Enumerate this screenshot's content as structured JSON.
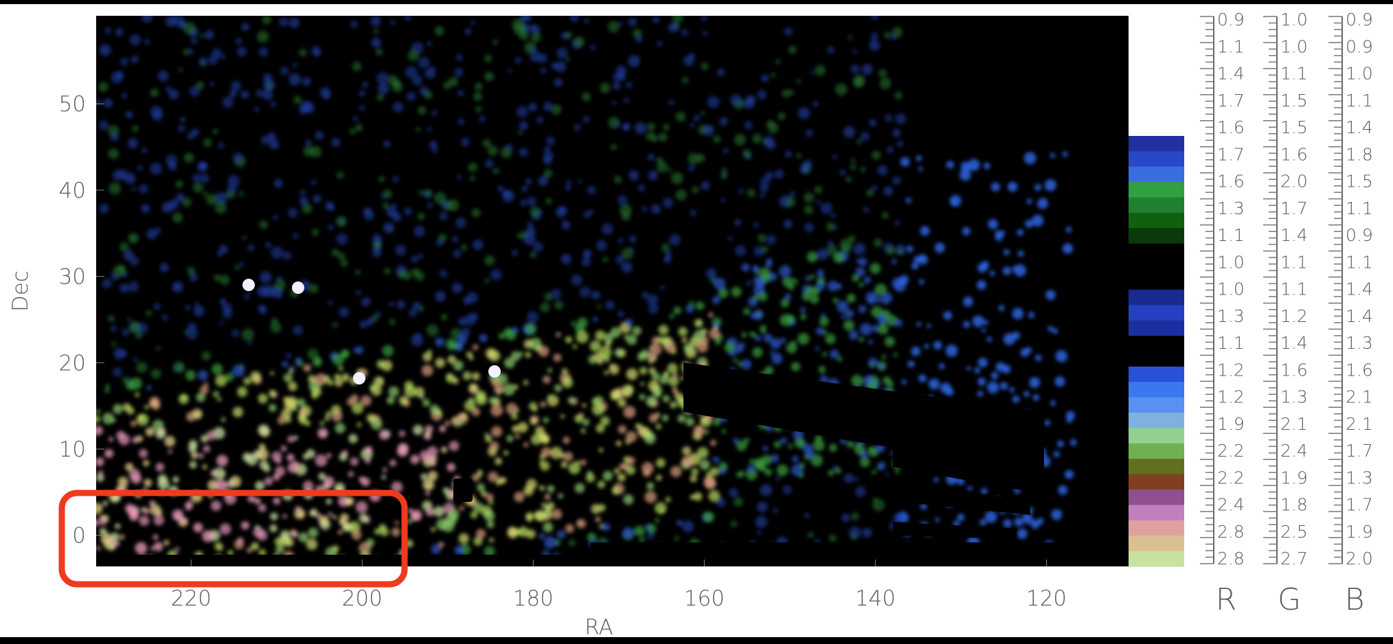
{
  "chart_data": {
    "type": "image",
    "xlabel": "RA",
    "ylabel": "Dec",
    "xlim": [
      231.1,
      110.4
    ],
    "xticks": [
      220,
      200,
      180,
      160,
      140,
      120
    ],
    "ylim": [
      -3.6,
      60.2
    ],
    "yticks": [
      0,
      10,
      20,
      30,
      40,
      50
    ],
    "scales": [
      {
        "label": "R",
        "values": [
          "0.9",
          "1.1",
          "1.4",
          "1.7",
          "1.6",
          "1.7",
          "1.6",
          "1.3",
          "1.1",
          "1.0",
          "1.0",
          "1.3",
          "1.1",
          "1.2",
          "1.2",
          "1.9",
          "2.2",
          "2.2",
          "2.4",
          "2.8",
          "2.8"
        ]
      },
      {
        "label": "G",
        "values": [
          "1.0",
          "1.0",
          "1.1",
          "1.5",
          "1.5",
          "1.6",
          "2.0",
          "1.7",
          "1.4",
          "1.1",
          "1.1",
          "1.2",
          "1.4",
          "1.6",
          "1.3",
          "2.1",
          "2.4",
          "1.9",
          "1.8",
          "2.5",
          "2.7"
        ]
      },
      {
        "label": "B",
        "values": [
          "0.9",
          "0.9",
          "1.0",
          "1.1",
          "1.4",
          "1.8",
          "1.5",
          "1.1",
          "0.9",
          "1.1",
          "1.4",
          "1.4",
          "1.3",
          "1.6",
          "2.1",
          "2.1",
          "1.7",
          "1.3",
          "1.7",
          "1.9",
          "2.0"
        ]
      }
    ]
  }
}
